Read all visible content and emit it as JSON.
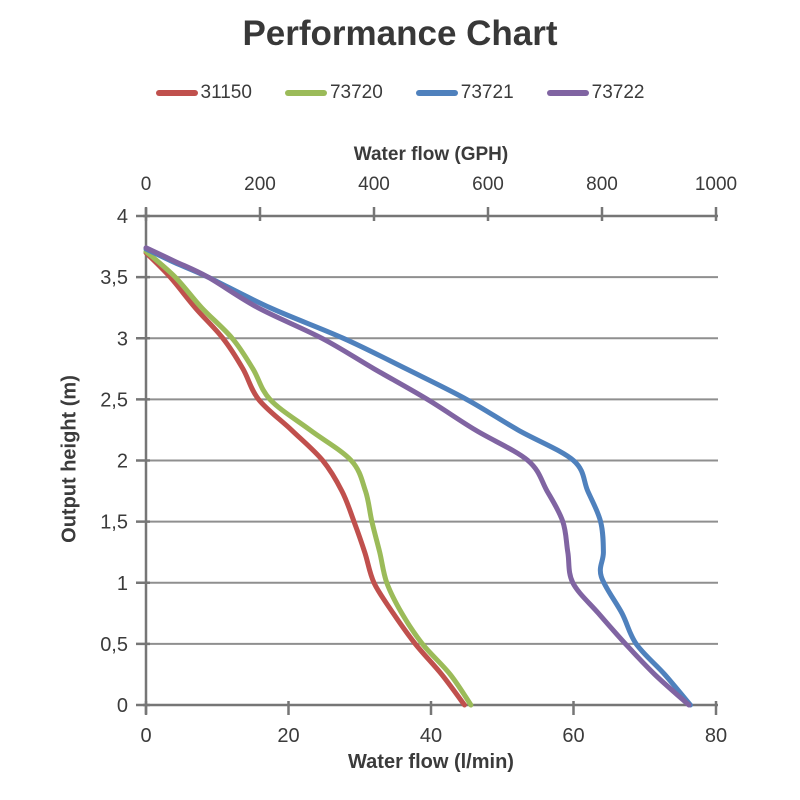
{
  "chart_data": {
    "type": "line",
    "title": "Performance Chart",
    "legend_position": "top",
    "grid": "horizontal",
    "colors": {
      "gridline": "#8f8f8f",
      "axis": "#767676",
      "text": "#3b3b3b"
    },
    "top_axis": {
      "label": "Water flow (GPH)",
      "range": [
        0,
        1000
      ],
      "ticks": [
        {
          "v": 0,
          "label": "0"
        },
        {
          "v": 200,
          "label": "200"
        },
        {
          "v": 400,
          "label": "400"
        },
        {
          "v": 600,
          "label": "600"
        },
        {
          "v": 800,
          "label": "800"
        },
        {
          "v": 1000,
          "label": "1000"
        }
      ]
    },
    "bottom_axis": {
      "label": "Water flow (l/min)",
      "range": [
        0,
        80
      ],
      "ticks": [
        {
          "v": 0,
          "label": "0"
        },
        {
          "v": 20,
          "label": "20"
        },
        {
          "v": 40,
          "label": "40"
        },
        {
          "v": 60,
          "label": "60"
        },
        {
          "v": 80,
          "label": "80"
        }
      ]
    },
    "y_axis": {
      "label": "Output height (m)",
      "range": [
        0,
        4
      ],
      "ticks": [
        {
          "v": 0,
          "label": "0"
        },
        {
          "v": 0.5,
          "label": "0,5"
        },
        {
          "v": 1,
          "label": "1"
        },
        {
          "v": 1.5,
          "label": "1,5"
        },
        {
          "v": 2,
          "label": "2"
        },
        {
          "v": 2.5,
          "label": "2,5"
        },
        {
          "v": 3,
          "label": "3"
        },
        {
          "v": 3.5,
          "label": "3,5"
        },
        {
          "v": 4,
          "label": "4"
        }
      ]
    },
    "series": [
      {
        "name": "31150",
        "color": "#C0504D",
        "points_unit": "[l/min, m]",
        "points": [
          [
            0,
            3.7
          ],
          [
            3.4,
            3.5
          ],
          [
            6.9,
            3.25
          ],
          [
            10.8,
            3.0
          ],
          [
            13.6,
            2.75
          ],
          [
            15.8,
            2.5
          ],
          [
            20.4,
            2.25
          ],
          [
            24.8,
            2.0
          ],
          [
            27.5,
            1.75
          ],
          [
            29.2,
            1.5
          ],
          [
            30.7,
            1.25
          ],
          [
            32.0,
            1.0
          ],
          [
            34.7,
            0.75
          ],
          [
            37.8,
            0.5
          ],
          [
            41.5,
            0.25
          ],
          [
            44.7,
            0
          ]
        ]
      },
      {
        "name": "73720",
        "color": "#9BBB59",
        "points_unit": "[l/min, m]",
        "points": [
          [
            0,
            3.71
          ],
          [
            4.1,
            3.5
          ],
          [
            7.8,
            3.25
          ],
          [
            12.1,
            3.0
          ],
          [
            15.0,
            2.75
          ],
          [
            17.4,
            2.5
          ],
          [
            23.0,
            2.25
          ],
          [
            28.8,
            2.0
          ],
          [
            30.8,
            1.75
          ],
          [
            31.7,
            1.5
          ],
          [
            32.8,
            1.25
          ],
          [
            33.8,
            1.0
          ],
          [
            35.9,
            0.75
          ],
          [
            38.8,
            0.5
          ],
          [
            42.7,
            0.25
          ],
          [
            45.6,
            0
          ]
        ]
      },
      {
        "name": "73721",
        "color": "#4F81BD",
        "points_unit": "[l/min, m]",
        "points": [
          [
            0,
            3.73
          ],
          [
            4.0,
            3.62
          ],
          [
            8.7,
            3.5
          ],
          [
            17.4,
            3.25
          ],
          [
            27.7,
            3.0
          ],
          [
            36.5,
            2.75
          ],
          [
            45.0,
            2.5
          ],
          [
            52.2,
            2.25
          ],
          [
            60.0,
            2.0
          ],
          [
            62.0,
            1.75
          ],
          [
            63.8,
            1.5
          ],
          [
            64.2,
            1.25
          ],
          [
            63.9,
            1.05
          ],
          [
            66.8,
            0.75
          ],
          [
            68.8,
            0.5
          ],
          [
            72.8,
            0.25
          ],
          [
            76.4,
            0
          ]
        ]
      },
      {
        "name": "73722",
        "color": "#8064A2",
        "points_unit": "[l/min, m]",
        "points": [
          [
            0,
            3.74
          ],
          [
            4.0,
            3.63
          ],
          [
            8.7,
            3.5
          ],
          [
            15.7,
            3.25
          ],
          [
            24.7,
            3.0
          ],
          [
            32.0,
            2.75
          ],
          [
            39.5,
            2.5
          ],
          [
            46.2,
            2.25
          ],
          [
            53.6,
            2.0
          ],
          [
            56.3,
            1.75
          ],
          [
            58.5,
            1.5
          ],
          [
            59.2,
            1.25
          ],
          [
            59.9,
            1.0
          ],
          [
            63.5,
            0.75
          ],
          [
            67.3,
            0.5
          ],
          [
            71.4,
            0.25
          ],
          [
            76.2,
            0
          ]
        ]
      }
    ]
  }
}
